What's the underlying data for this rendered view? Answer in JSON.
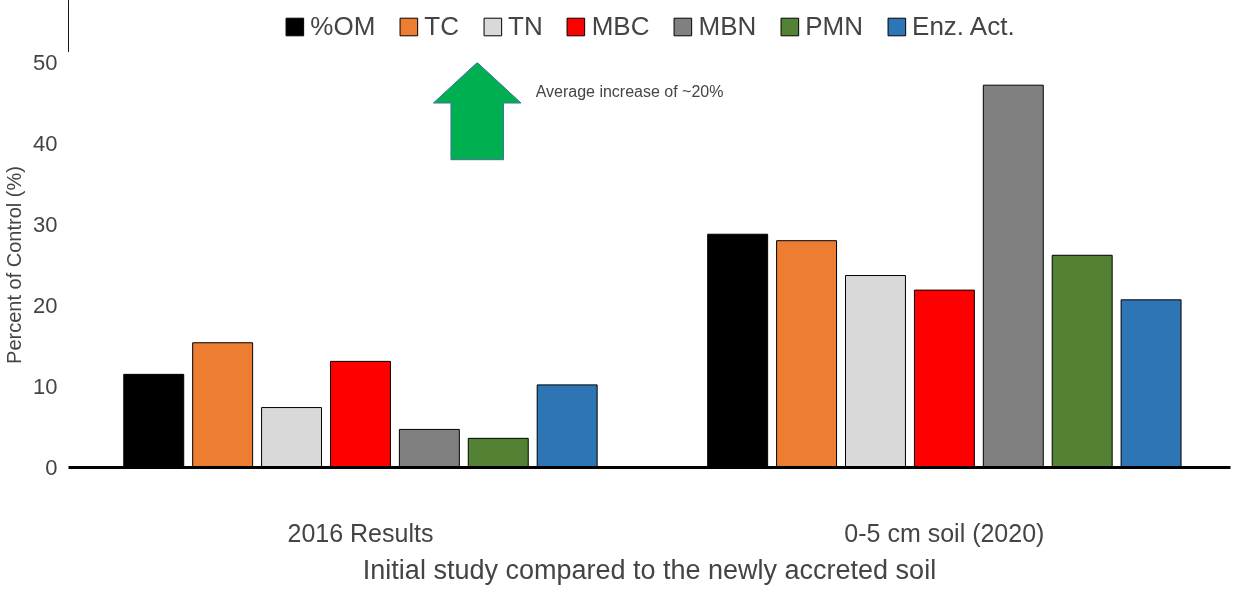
{
  "chart_data": {
    "type": "bar",
    "xlabel": "Initial study compared to the newly accreted soil",
    "ylabel": "Percent of Control (%)",
    "categories": [
      "2016 Results",
      "0-5 cm soil (2020)"
    ],
    "series": [
      {
        "name": "%OM",
        "color": "#000000",
        "values": [
          11.5,
          28.8
        ]
      },
      {
        "name": "TC",
        "color": "#ed7d31",
        "values": [
          15.4,
          28.0
        ]
      },
      {
        "name": "TN",
        "color": "#d9d9d9",
        "values": [
          7.4,
          23.7
        ]
      },
      {
        "name": "MBC",
        "color": "#ff0000",
        "values": [
          13.1,
          21.9
        ]
      },
      {
        "name": "MBN",
        "color": "#808080",
        "values": [
          4.7,
          47.2
        ]
      },
      {
        "name": "PMN",
        "color": "#548235",
        "values": [
          3.6,
          26.2
        ]
      },
      {
        "name": "Enz. Act.",
        "color": "#2e75b6",
        "values": [
          10.2,
          20.7
        ]
      }
    ],
    "ylim": [
      0,
      50
    ],
    "yticks": [
      0,
      10,
      20,
      30,
      40,
      50
    ],
    "grid": false,
    "legend": "top",
    "annotations": [
      "Average increase of ~20%"
    ]
  }
}
